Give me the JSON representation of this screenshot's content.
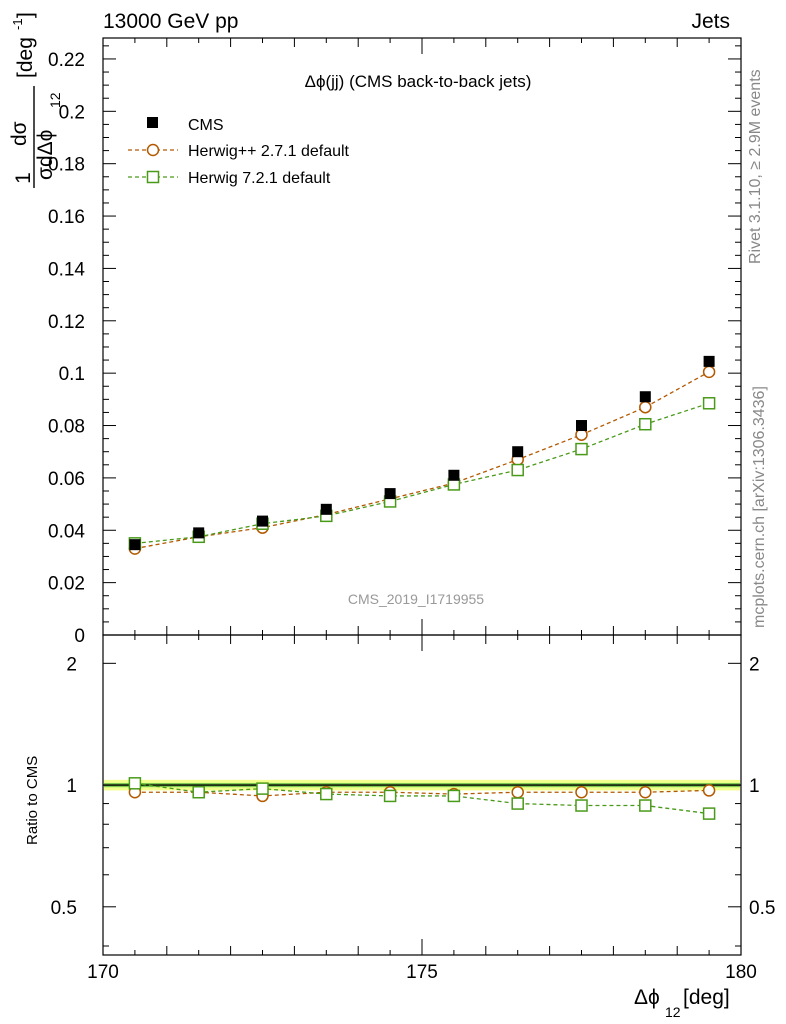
{
  "header": {
    "left": "13000 GeV pp",
    "right": "Jets"
  },
  "side_labels": {
    "rivet": "Rivet 3.1.10, ≥ 2.9M events",
    "mcplots": "mcplots.cern.ch [arXiv:1306.3436]"
  },
  "plot_title": "Δϕ(jj) (CMS back-to-back jets)",
  "analysis_id": "CMS_2019_I1719955",
  "colors": {
    "data": "#000000",
    "herwigpp": "#b35900",
    "herwig7": "#4a9a1a",
    "band_outer": "#f2ff8c",
    "band_inner": "#7cc850"
  },
  "chart_data": [
    {
      "type": "scatter",
      "panel": "main",
      "ylabel_parts": {
        "num": "1",
        "dsig": "dσ",
        "den": "σdΔϕ",
        "sub": "12",
        "unit": "[deg",
        "sup": "-1",
        "close": "]"
      },
      "xlim": [
        170,
        180
      ],
      "ylim": [
        0,
        0.228
      ],
      "yticks": [
        "0",
        "0.02",
        "0.04",
        "0.06",
        "0.08",
        "0.1",
        "0.12",
        "0.14",
        "0.16",
        "0.18",
        "0.2",
        "0.22"
      ],
      "legend_position": "top-left",
      "x": [
        170.5,
        171.5,
        172.5,
        173.5,
        174.5,
        175.5,
        176.5,
        177.5,
        178.5,
        179.5
      ],
      "series": [
        {
          "name": "CMS",
          "marker": "square-filled",
          "values": [
            0.0345,
            0.039,
            0.0435,
            0.048,
            0.054,
            0.061,
            0.07,
            0.08,
            0.091,
            0.1045
          ]
        },
        {
          "name": "Herwig++ 2.7.1 default",
          "marker": "circle-open",
          "line": "dashed",
          "values": [
            0.033,
            0.0375,
            0.041,
            0.046,
            0.052,
            0.058,
            0.067,
            0.0765,
            0.087,
            0.1005
          ]
        },
        {
          "name": "Herwig 7.2.1 default",
          "marker": "square-open",
          "line": "dashed",
          "values": [
            0.035,
            0.0375,
            0.0425,
            0.0455,
            0.051,
            0.0575,
            0.063,
            0.071,
            0.0805,
            0.0885
          ]
        }
      ]
    },
    {
      "type": "scatter",
      "panel": "ratio",
      "ylabel": "Ratio to CMS",
      "xlabel_parts": {
        "main": "Δϕ",
        "sub": "12",
        "unit": " [deg]"
      },
      "xlim": [
        170,
        180
      ],
      "ylim": [
        0.38,
        2.35
      ],
      "log_y": true,
      "xticks": [
        "170",
        "175",
        "180"
      ],
      "yticks": [
        "0.5",
        "1",
        "2"
      ],
      "x": [
        170.5,
        171.5,
        172.5,
        173.5,
        174.5,
        175.5,
        176.5,
        177.5,
        178.5,
        179.5
      ],
      "series": [
        {
          "name": "Herwig++ 2.7.1 default",
          "marker": "circle-open",
          "line": "dashed",
          "values": [
            0.96,
            0.96,
            0.94,
            0.96,
            0.96,
            0.95,
            0.96,
            0.96,
            0.96,
            0.97
          ]
        },
        {
          "name": "Herwig 7.2.1 default",
          "marker": "square-open",
          "line": "dashed",
          "values": [
            1.01,
            0.96,
            0.98,
            0.95,
            0.94,
            0.94,
            0.9,
            0.89,
            0.89,
            0.85
          ]
        }
      ]
    }
  ]
}
